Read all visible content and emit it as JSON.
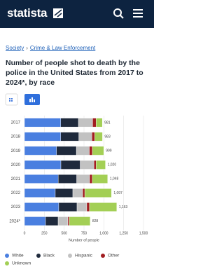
{
  "header": {
    "logo": "statista"
  },
  "breadcrumb": {
    "items": [
      "Society",
      "Crime & Law Enforcement"
    ],
    "separator": "›"
  },
  "chart_data": {
    "type": "stacked-barh",
    "title": "Number of people shot to death by the police in the United States from 2017 to 2024*, by race",
    "x_label": "Number of people",
    "categories": [
      "2017",
      "2018",
      "2019",
      "2020",
      "2021",
      "2022",
      "2023",
      "2024*"
    ],
    "series": [
      {
        "name": "White",
        "color": "#4a7fe0",
        "values": [
          457,
          456,
          404,
          459,
          425,
          388,
          432,
          265
        ]
      },
      {
        "name": "Black",
        "color": "#1f2a3c",
        "values": [
          223,
          229,
          250,
          243,
          233,
          221,
          230,
          159
        ]
      },
      {
        "name": "Hispanic",
        "color": "#c2c2c2",
        "values": [
          179,
          165,
          163,
          173,
          163,
          124,
          123,
          123
        ]
      },
      {
        "name": "Other",
        "color": "#a11d21",
        "values": [
          44,
          36,
          39,
          28,
          33,
          27,
          35,
          18
        ]
      },
      {
        "name": "Unknown",
        "color": "#a3cf55",
        "values": [
          78,
          97,
          143,
          117,
          194,
          337,
          343,
          263
        ]
      }
    ],
    "totals": [
      981,
      983,
      999,
      1020,
      1048,
      1097,
      1163,
      828
    ],
    "total_labels": [
      "981",
      "983",
      "999",
      "1,020",
      "1,048",
      "1,097",
      "1,163",
      "828"
    ],
    "xlim": [
      0,
      1500
    ],
    "xticks": [
      0,
      250,
      500,
      750,
      {
        "value": 1000,
        "label": "1,000"
      },
      {
        "value": 1250,
        "label": "1,250"
      },
      {
        "value": 1500,
        "label": "1,500"
      }
    ],
    "grid": true
  }
}
